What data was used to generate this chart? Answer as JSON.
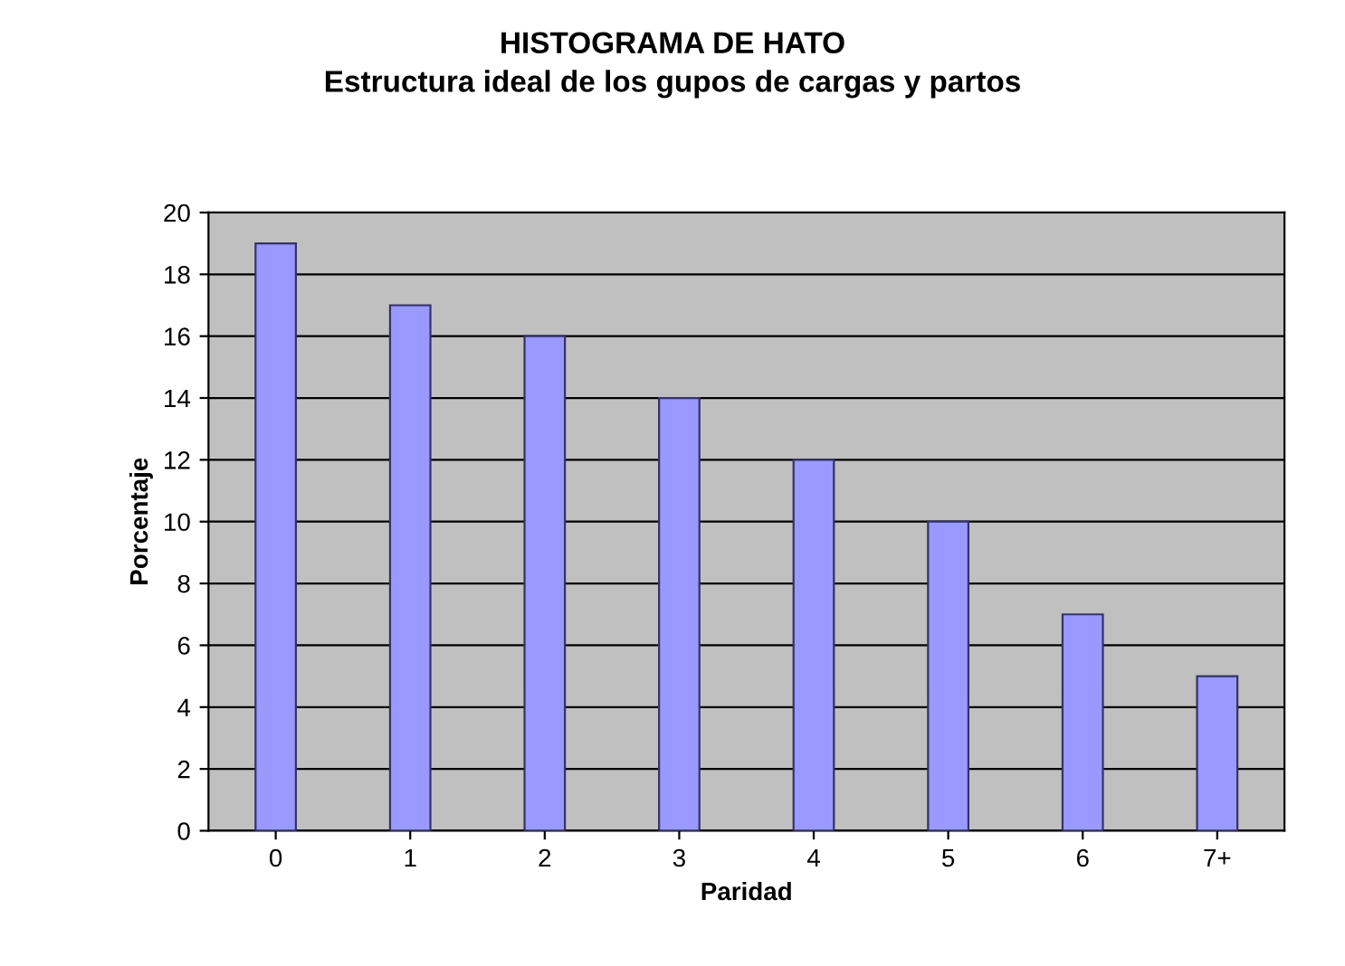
{
  "chart_data": {
    "type": "bar",
    "title": "HISTOGRAMA DE HATO",
    "subtitle": "Estructura ideal de los gupos de cargas y partos",
    "xlabel": "Paridad",
    "ylabel": "Porcentaje",
    "categories": [
      "0",
      "1",
      "2",
      "3",
      "4",
      "5",
      "6",
      "7+"
    ],
    "values": [
      19,
      17,
      16,
      14,
      12,
      10,
      7,
      5
    ],
    "color": "#9999ff",
    "ylim": [
      0,
      20
    ],
    "yticks": [
      0,
      2,
      4,
      6,
      8,
      10,
      12,
      14,
      16,
      18,
      20
    ],
    "grid": "y"
  }
}
